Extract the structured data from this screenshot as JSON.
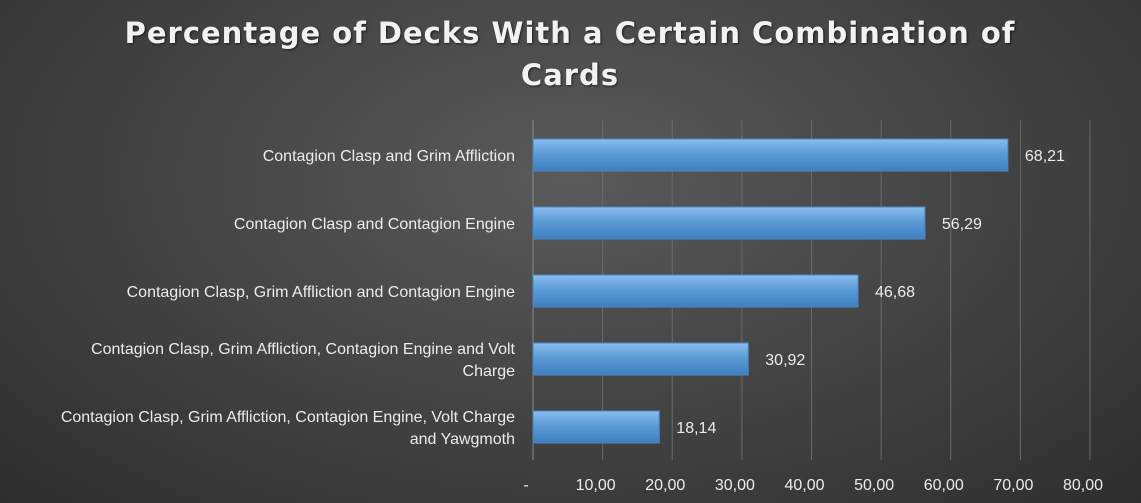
{
  "chart_data": {
    "type": "bar",
    "orientation": "horizontal",
    "title": "Percentage of Decks With a Certain Combination of Cards",
    "categories": [
      [
        "Contagion Clasp and Grim Affliction"
      ],
      [
        "Contagion Clasp and Contagion Engine"
      ],
      [
        "Contagion Clasp, Grim Affliction and Contagion Engine"
      ],
      [
        "Contagion Clasp, Grim Affliction, Contagion Engine and Volt",
        "Charge"
      ],
      [
        "Contagion Clasp, Grim Affliction, Contagion Engine, Volt Charge",
        "and Yawgmoth"
      ]
    ],
    "values": [
      68.21,
      56.29,
      46.68,
      30.92,
      18.14
    ],
    "value_labels": [
      "68,21",
      "56,29",
      "46,68",
      "30,92",
      "18,14"
    ],
    "xlim": [
      0,
      80
    ],
    "ticks": [
      0,
      10,
      20,
      30,
      40,
      50,
      60,
      70,
      80
    ],
    "tick_labels": [
      "-",
      "10,00",
      "20,00",
      "30,00",
      "40,00",
      "50,00",
      "60,00",
      "70,00",
      "80,00"
    ],
    "grid": true,
    "legend": "none",
    "bar_color": "#5b9bd5"
  }
}
